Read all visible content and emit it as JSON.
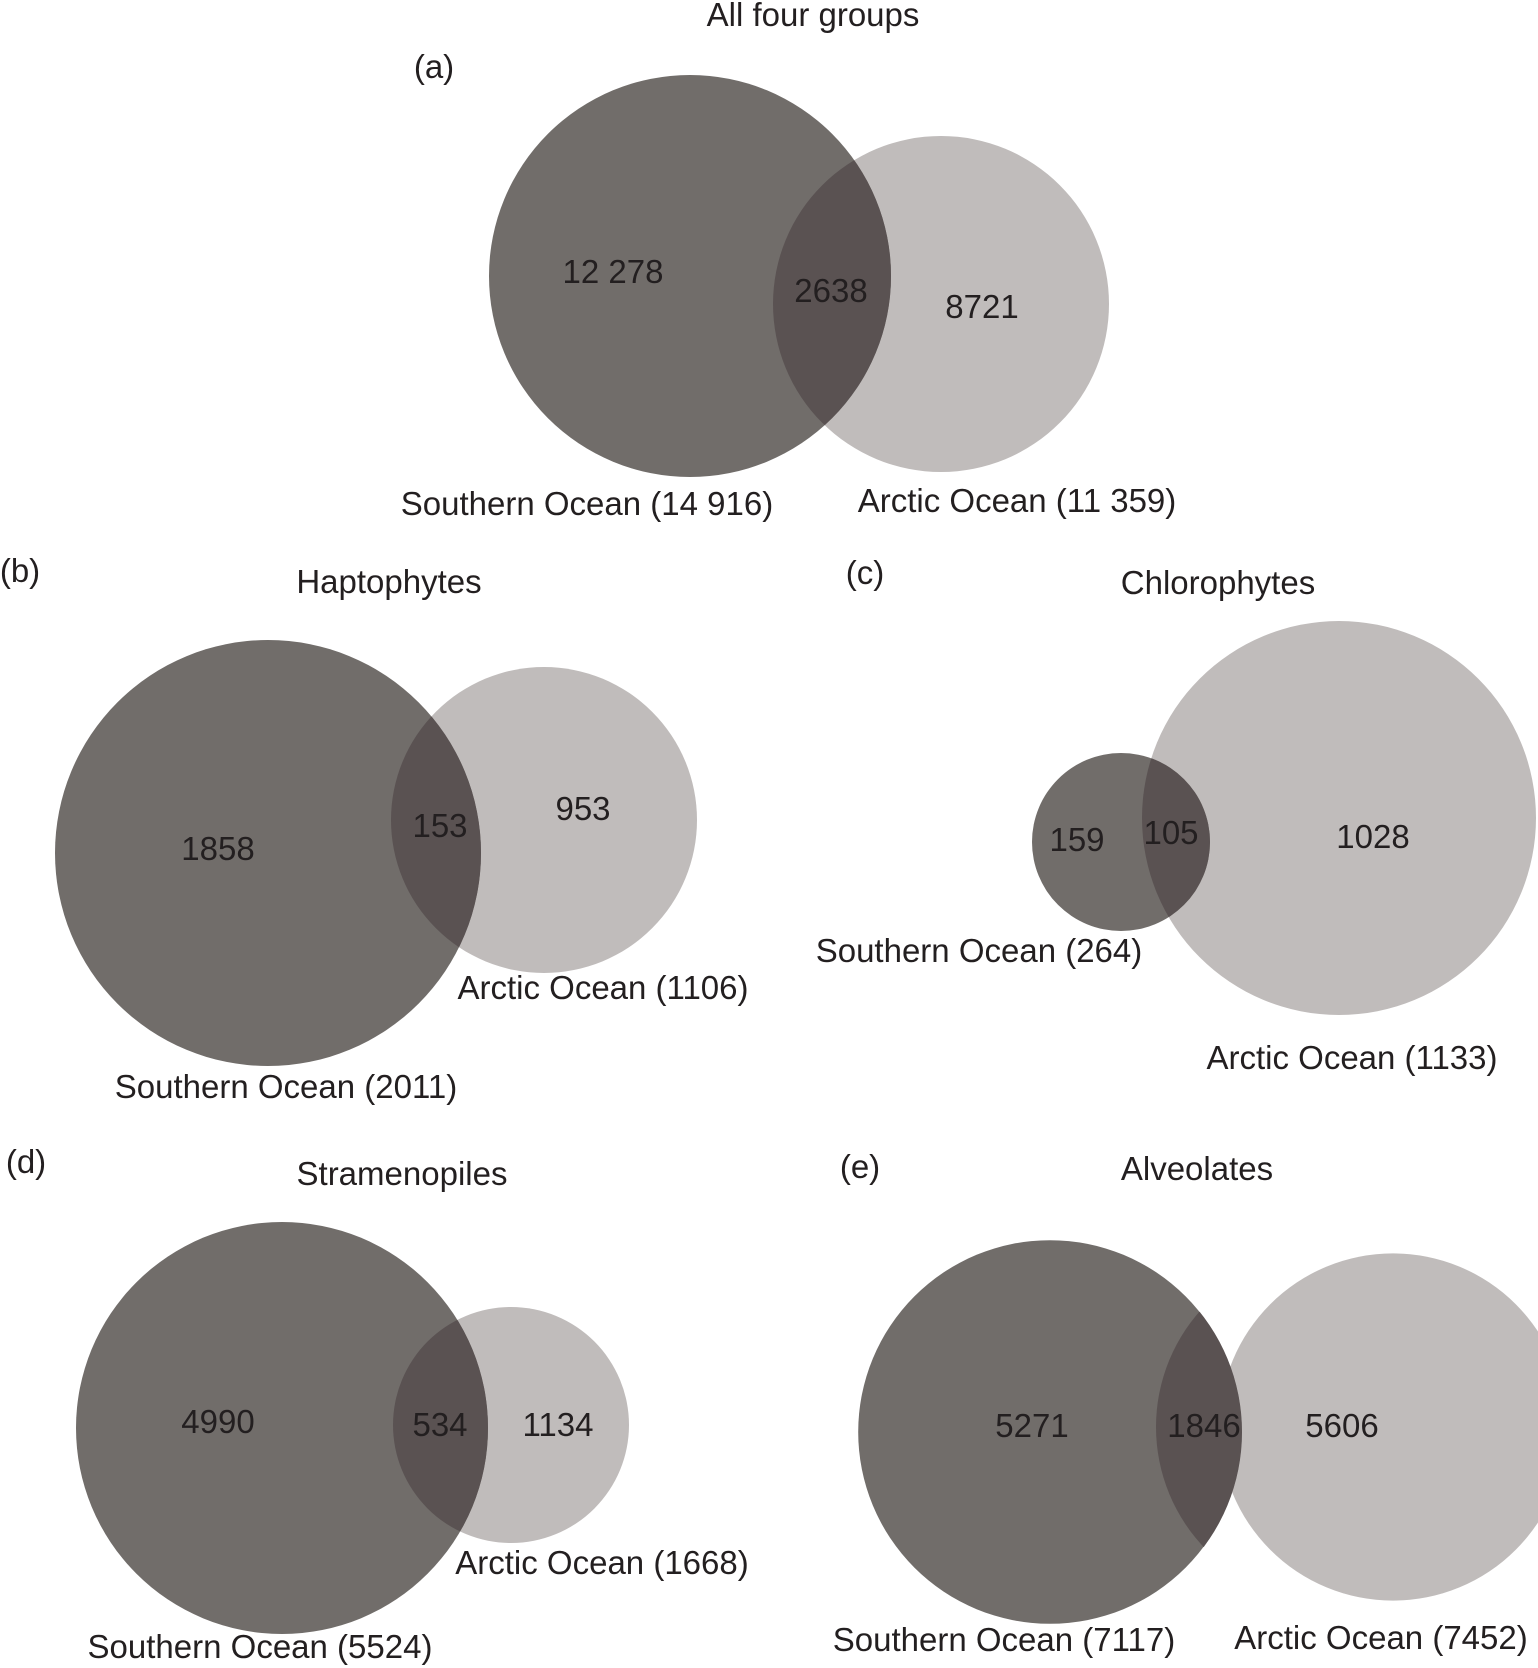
{
  "figure": {
    "colors": {
      "southern": "#716d6a",
      "arctic": "#c0bcbb",
      "overlap": "#5a5252",
      "text": "#231f20"
    },
    "panels": [
      {
        "id": "a",
        "label": "(a)",
        "title": "All four groups",
        "southern": {
          "caption": "Southern Ocean (14 916)",
          "unique": "12 278"
        },
        "shared": "2638",
        "arctic": {
          "caption": "Arctic Ocean (11 359)",
          "unique": "8721"
        }
      },
      {
        "id": "b",
        "label": "(b)",
        "title": "Haptophytes",
        "southern": {
          "caption": "Southern Ocean (2011)",
          "unique": "1858"
        },
        "shared": "153",
        "arctic": {
          "caption": "Arctic Ocean (1106)",
          "unique": "953"
        }
      },
      {
        "id": "c",
        "label": "(c)",
        "title": "Chlorophytes",
        "southern": {
          "caption": "Southern Ocean (264)",
          "unique": "159"
        },
        "shared": "105",
        "arctic": {
          "caption": "Arctic Ocean (1133)",
          "unique": "1028"
        }
      },
      {
        "id": "d",
        "label": "(d)",
        "title": "Stramenopiles",
        "southern": {
          "caption": "Southern Ocean (5524)",
          "unique": "4990"
        },
        "shared": "534",
        "arctic": {
          "caption": "Arctic Ocean (1668)",
          "unique": "1134"
        }
      },
      {
        "id": "e",
        "label": "(e)",
        "title": "Alveolates",
        "southern": {
          "caption": "Southern Ocean (7117)",
          "unique": "5271"
        },
        "shared": "1846",
        "arctic": {
          "caption": "Arctic Ocean (7452)",
          "unique": "5606"
        }
      }
    ]
  }
}
